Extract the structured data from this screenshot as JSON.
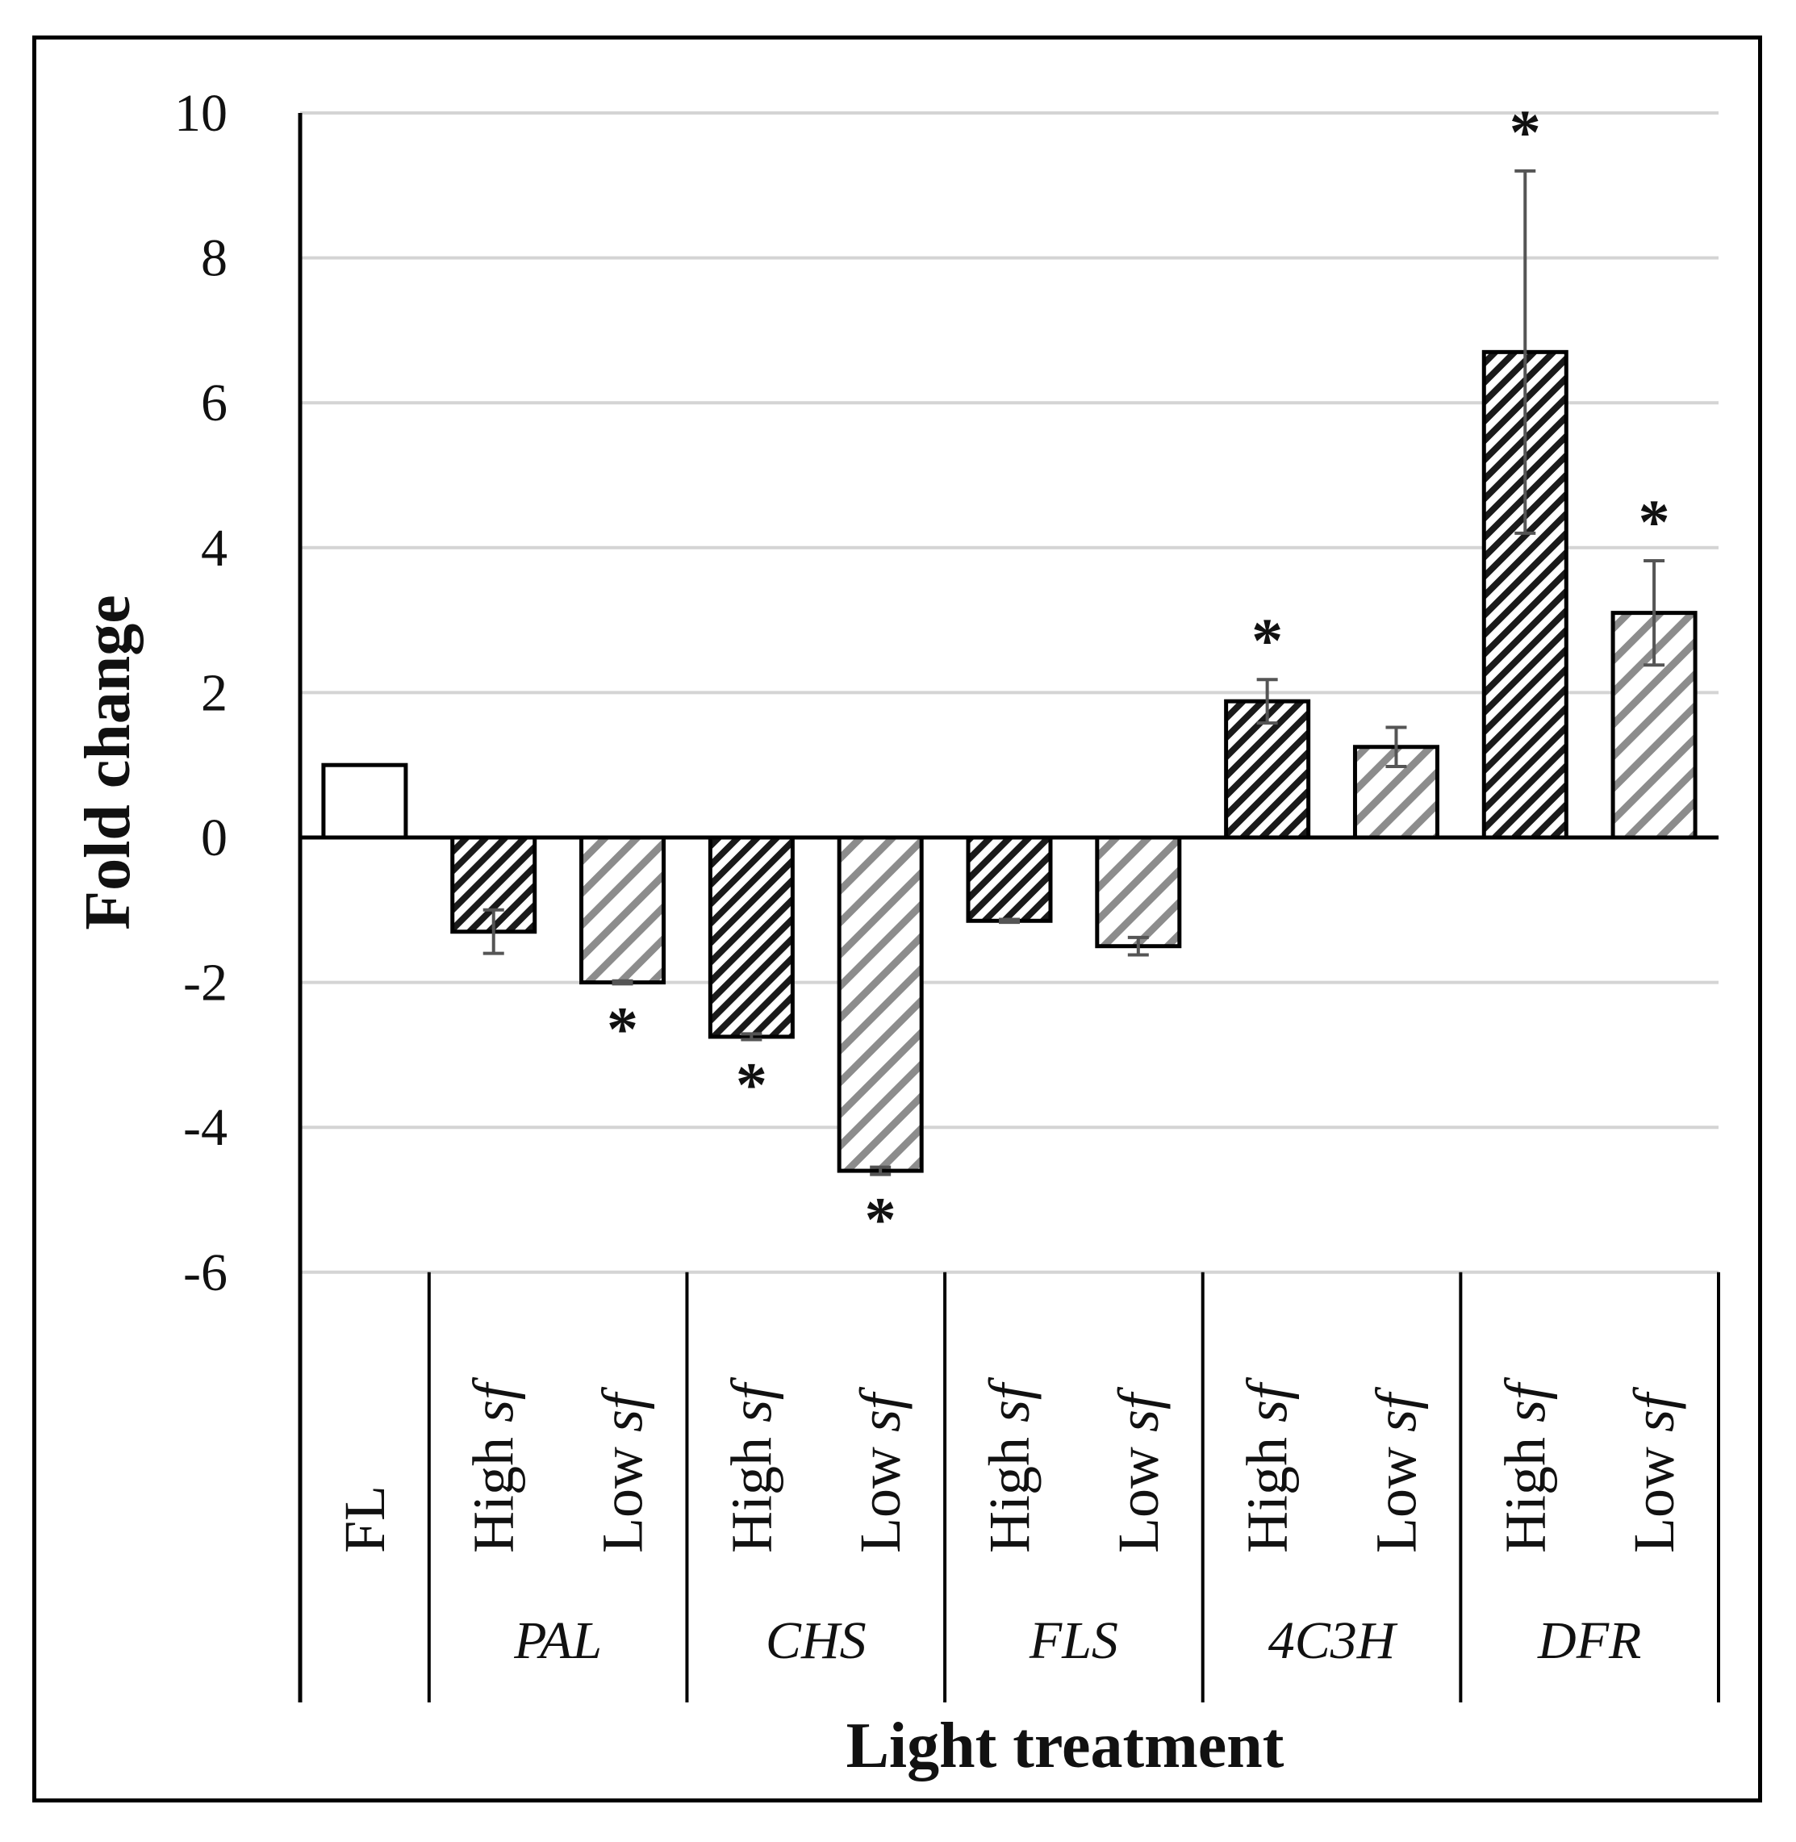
{
  "chart_data": {
    "type": "bar",
    "title": "",
    "xlabel": "Light treatment",
    "ylabel": "Fold change",
    "ylim": [
      -6,
      10
    ],
    "yticks": [
      10,
      8,
      6,
      4,
      2,
      0,
      -2,
      -4,
      -6
    ],
    "grid": true,
    "categories": [
      {
        "treatment": "FL",
        "suffix": "",
        "gene": "",
        "value": 1.0,
        "error": 0.0,
        "significant": false,
        "pattern": "none"
      },
      {
        "treatment": "High ",
        "suffix": "sf",
        "gene": "PAL",
        "value": -1.3,
        "error": 0.3,
        "significant": false,
        "pattern": "dark"
      },
      {
        "treatment": "Low ",
        "suffix": "sf",
        "gene": "PAL",
        "value": -2.0,
        "error": 0.02,
        "significant": true,
        "pattern": "light"
      },
      {
        "treatment": "High ",
        "suffix": "sf",
        "gene": "CHS",
        "value": -2.75,
        "error": 0.04,
        "significant": true,
        "pattern": "dark"
      },
      {
        "treatment": "Low ",
        "suffix": "sf",
        "gene": "CHS",
        "value": -4.6,
        "error": 0.05,
        "significant": true,
        "pattern": "light"
      },
      {
        "treatment": "High ",
        "suffix": "sf",
        "gene": "FLS",
        "value": -1.15,
        "error": 0.02,
        "significant": false,
        "pattern": "dark"
      },
      {
        "treatment": "Low ",
        "suffix": "sf",
        "gene": "FLS",
        "value": -1.5,
        "error": 0.12,
        "significant": false,
        "pattern": "light"
      },
      {
        "treatment": "High ",
        "suffix": "sf",
        "gene": "4C3H",
        "value": 1.88,
        "error": 0.3,
        "significant": true,
        "pattern": "dark"
      },
      {
        "treatment": "Low ",
        "suffix": "sf",
        "gene": "4C3H",
        "value": 1.25,
        "error": 0.27,
        "significant": false,
        "pattern": "light"
      },
      {
        "treatment": "High ",
        "suffix": "sf",
        "gene": "DFR",
        "value": 6.7,
        "error": 2.5,
        "significant": true,
        "pattern": "dark"
      },
      {
        "treatment": "Low ",
        "suffix": "sf",
        "gene": "DFR",
        "value": 3.1,
        "error": 0.72,
        "significant": true,
        "pattern": "light"
      }
    ],
    "gene_groups": [
      "PAL",
      "CHS",
      "FLS",
      "4C3H",
      "DFR"
    ],
    "significance_marker": "*",
    "colors": {
      "dark_pattern": "#1a1a1a",
      "light_pattern": "#8c8c8c",
      "bar_outline": "#000000",
      "gridline": "#d4d4d4",
      "error_bar": "#555555"
    }
  }
}
